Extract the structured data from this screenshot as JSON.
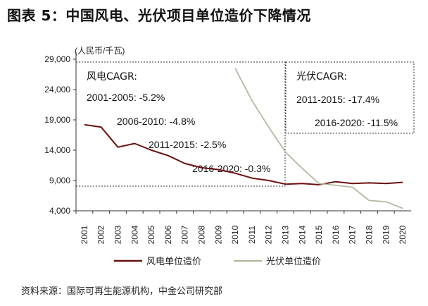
{
  "title": "图表 5：中国风电、光伏项目单位造价下降情况",
  "source": "资料来源：国际可再生能源机构，中金公司研究部",
  "chart_data": {
    "type": "line",
    "ylabel": "(人民币/千瓦)",
    "xlabel": "",
    "ylim": [
      4000,
      29000
    ],
    "yticks": [
      "4,000",
      "9,000",
      "14,000",
      "19,000",
      "24,000",
      "29,000"
    ],
    "ytick_values": [
      4000,
      9000,
      14000,
      19000,
      24000,
      29000
    ],
    "x": [
      "2001",
      "2002",
      "2003",
      "2004",
      "2005",
      "2006",
      "2007",
      "2008",
      "2009",
      "2010",
      "2011",
      "2012",
      "2013",
      "2014",
      "2015",
      "2016",
      "2017",
      "2018",
      "2019",
      "2020"
    ],
    "series": [
      {
        "name": "风电单位造价",
        "color": "#6b0f0f",
        "values": [
          18200,
          17800,
          14500,
          15100,
          14000,
          13100,
          11800,
          11100,
          10800,
          10200,
          9400,
          9000,
          8400,
          8500,
          8300,
          8800,
          8500,
          8600,
          8500,
          8700
        ]
      },
      {
        "name": "光伏单位造价",
        "color": "#b5b8a0",
        "values": [
          null,
          null,
          null,
          null,
          null,
          null,
          null,
          null,
          null,
          27500,
          22200,
          17800,
          13700,
          11000,
          8500,
          8200,
          7900,
          5700,
          5500,
          4400
        ]
      }
    ],
    "legend_position": "bottom",
    "annotations": {
      "wind": {
        "title": "风电CAGR:",
        "lines": [
          "2001-2005: -5.2%",
          "2006-2010: -4.8%",
          "2011-2015: -2.5%",
          "2016-2020: -0.3%"
        ]
      },
      "solar": {
        "title": "光伏CAGR:",
        "lines": [
          "2011-2015: -17.4%",
          "2016-2020: -11.5%"
        ]
      }
    }
  }
}
